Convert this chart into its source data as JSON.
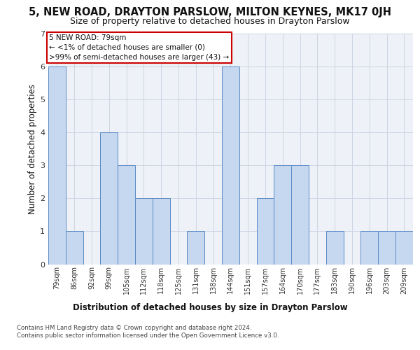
{
  "title1": "5, NEW ROAD, DRAYTON PARSLOW, MILTON KEYNES, MK17 0JH",
  "title2": "Size of property relative to detached houses in Drayton Parslow",
  "xlabel": "Distribution of detached houses by size in Drayton Parslow",
  "ylabel": "Number of detached properties",
  "footer1": "Contains HM Land Registry data © Crown copyright and database right 2024.",
  "footer2": "Contains public sector information licensed under the Open Government Licence v3.0.",
  "annotation_line1": "5 NEW ROAD: 79sqm",
  "annotation_line2": "← <1% of detached houses are smaller (0)",
  "annotation_line3": ">99% of semi-detached houses are larger (43) →",
  "categories": [
    "79sqm",
    "86sqm",
    "92sqm",
    "99sqm",
    "105sqm",
    "112sqm",
    "118sqm",
    "125sqm",
    "131sqm",
    "138sqm",
    "144sqm",
    "151sqm",
    "157sqm",
    "164sqm",
    "170sqm",
    "177sqm",
    "183sqm",
    "190sqm",
    "196sqm",
    "203sqm",
    "209sqm"
  ],
  "values": [
    6,
    1,
    0,
    4,
    3,
    2,
    2,
    0,
    1,
    0,
    6,
    0,
    2,
    3,
    3,
    0,
    1,
    0,
    1,
    1,
    1
  ],
  "bar_color": "#c5d8f0",
  "bar_edge_color": "#5b8ac5",
  "ylim": [
    0,
    7
  ],
  "yticks": [
    0,
    1,
    2,
    3,
    4,
    5,
    6,
    7
  ],
  "grid_color": "#cdd5e3",
  "bg_color": "#eef2f8",
  "title1_fontsize": 10.5,
  "title2_fontsize": 9,
  "xlabel_fontsize": 8.5,
  "ylabel_fontsize": 8.5,
  "tick_fontsize": 7,
  "ytick_fontsize": 8,
  "annotation_box_fill": "#ffffff",
  "annotation_box_edge": "#cc0000",
  "footer_fontsize": 6.2
}
